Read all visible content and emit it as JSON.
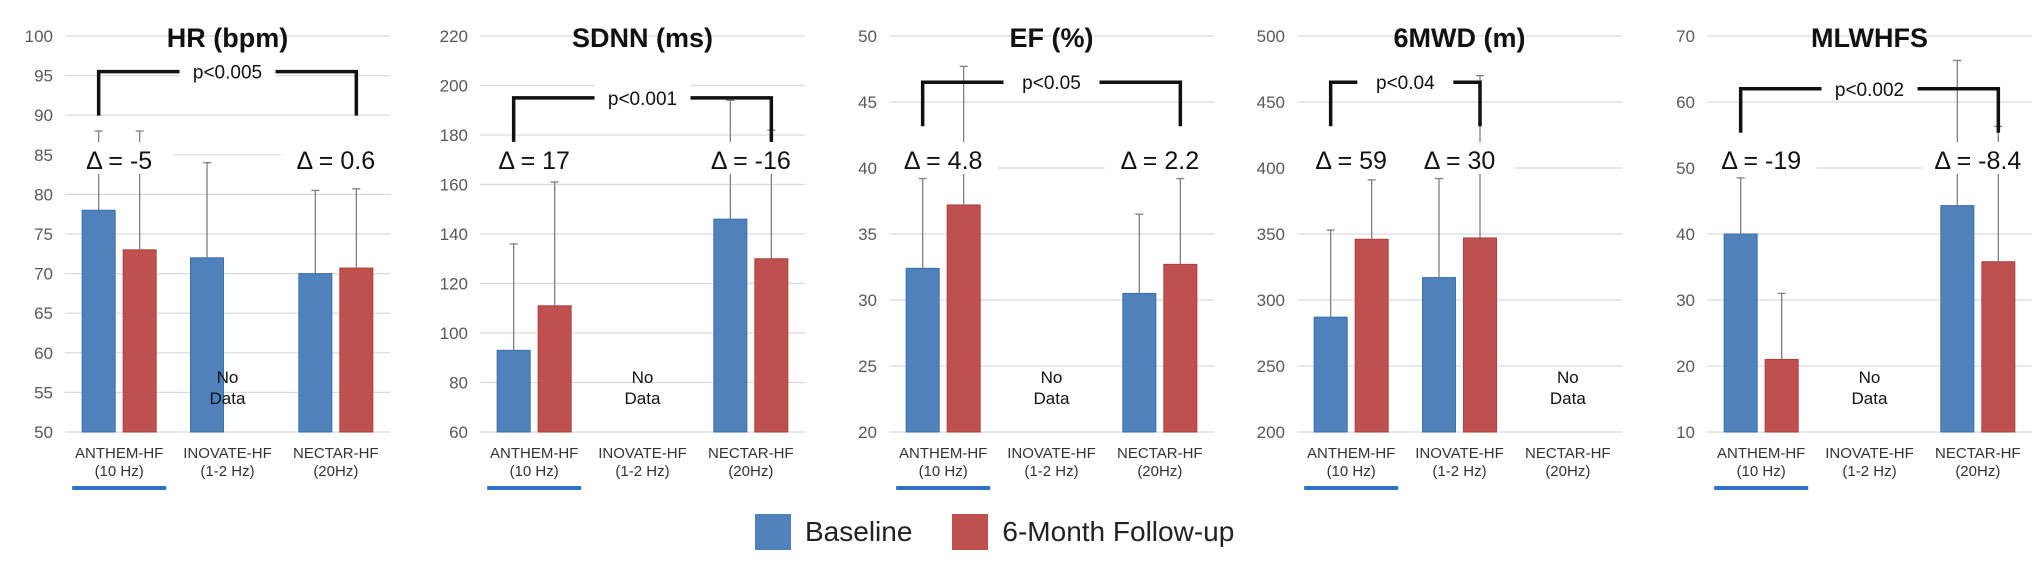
{
  "colors": {
    "baseline": "#4f81bd",
    "followup": "#c0504d",
    "grid": "#d9d9d9",
    "bracket": "#111111",
    "underline": "#2e75c9"
  },
  "legend": {
    "baseline": "Baseline",
    "followup": "6-Month Follow-up"
  },
  "chart_data": [
    {
      "type": "bar",
      "title": "HR (bpm)",
      "ylim": [
        50,
        100
      ],
      "yticks": [
        "50",
        "55",
        "60",
        "65",
        "70",
        "75",
        "80",
        "85",
        "90",
        "95",
        "100"
      ],
      "categories": [
        {
          "name": "ANTHEM-HF",
          "sub": "(10 Hz)",
          "underline": true
        },
        {
          "name": "INOVATE-HF",
          "sub": "(1-2 Hz)",
          "underline": false
        },
        {
          "name": "NECTAR-HF",
          "sub": "(20Hz)",
          "underline": false
        }
      ],
      "series": [
        {
          "name": "Baseline",
          "values": [
            78,
            72,
            70
          ],
          "errors": [
            10,
            12,
            10.5
          ]
        },
        {
          "name": "6-Month Follow-up",
          "values": [
            73,
            null,
            70.7
          ],
          "errors": [
            15,
            null,
            10
          ]
        }
      ],
      "deltas": [
        "Δ = -5",
        null,
        "Δ = 0.6"
      ],
      "no_data": [
        null,
        "No\nData",
        null
      ],
      "bracket": {
        "from": 0,
        "to": 2,
        "label": "p<0.005",
        "y": 95.5
      }
    },
    {
      "type": "bar",
      "title": "SDNN (ms)",
      "ylim": [
        60,
        220
      ],
      "yticks": [
        "60",
        "80",
        "100",
        "120",
        "140",
        "160",
        "180",
        "200",
        "220"
      ],
      "categories": [
        {
          "name": "ANTHEM-HF",
          "sub": "(10 Hz)",
          "underline": true
        },
        {
          "name": "INOVATE-HF",
          "sub": "(1-2 Hz)",
          "underline": false
        },
        {
          "name": "NECTAR-HF",
          "sub": "(20Hz)",
          "underline": false
        }
      ],
      "series": [
        {
          "name": "Baseline",
          "values": [
            93,
            null,
            146
          ],
          "errors": [
            43,
            null,
            48
          ]
        },
        {
          "name": "6-Month Follow-up",
          "values": [
            111,
            null,
            130
          ],
          "errors": [
            50,
            null,
            52
          ]
        }
      ],
      "deltas": [
        "Δ = 17",
        null,
        "Δ = -16"
      ],
      "no_data": [
        null,
        "No\nData",
        null
      ],
      "bracket": {
        "from": 0,
        "to": 2,
        "label": "p<0.001",
        "y": 195
      }
    },
    {
      "type": "bar",
      "title": "EF (%)",
      "ylim": [
        20,
        50
      ],
      "yticks": [
        "20",
        "25",
        "30",
        "35",
        "40",
        "45",
        "50"
      ],
      "categories": [
        {
          "name": "ANTHEM-HF",
          "sub": "(10 Hz)",
          "underline": true
        },
        {
          "name": "INOVATE-HF",
          "sub": "(1-2 Hz)",
          "underline": false
        },
        {
          "name": "NECTAR-HF",
          "sub": "(20Hz)",
          "underline": false
        }
      ],
      "series": [
        {
          "name": "Baseline",
          "values": [
            32.4,
            null,
            30.5
          ],
          "errors": [
            6.8,
            null,
            6
          ]
        },
        {
          "name": "6-Month Follow-up",
          "values": [
            37.2,
            null,
            32.7
          ],
          "errors": [
            10.5,
            null,
            6.5
          ]
        }
      ],
      "deltas": [
        "Δ = 4.8",
        null,
        "Δ = 2.2"
      ],
      "no_data": [
        null,
        "No\nData",
        null
      ],
      "bracket": {
        "from": 0,
        "to": 2,
        "label": "p<0.05",
        "y": 46.5
      }
    },
    {
      "type": "bar",
      "title": "6MWD (m)",
      "ylim": [
        200,
        500
      ],
      "yticks": [
        "200",
        "250",
        "300",
        "350",
        "400",
        "450",
        "500"
      ],
      "categories": [
        {
          "name": "ANTHEM-HF",
          "sub": "(10 Hz)",
          "underline": true
        },
        {
          "name": "INOVATE-HF",
          "sub": "(1-2 Hz)",
          "underline": false
        },
        {
          "name": "NECTAR-HF",
          "sub": "(20Hz)",
          "underline": false
        }
      ],
      "series": [
        {
          "name": "Baseline",
          "values": [
            287,
            317,
            null
          ],
          "errors": [
            66,
            75,
            null
          ]
        },
        {
          "name": "6-Month Follow-up",
          "values": [
            346,
            347,
            null
          ],
          "errors": [
            45,
            123,
            null
          ]
        }
      ],
      "deltas": [
        "Δ = 59",
        "Δ = 30",
        null
      ],
      "no_data": [
        null,
        null,
        "No\nData"
      ],
      "bracket": {
        "from": 0,
        "to": 1,
        "label": "p<0.04",
        "y": 465
      }
    },
    {
      "type": "bar",
      "title": "MLWHFS",
      "ylim": [
        10,
        70
      ],
      "yticks": [
        "10",
        "20",
        "30",
        "40",
        "50",
        "60",
        "70"
      ],
      "categories": [
        {
          "name": "ANTHEM-HF",
          "sub": "(10 Hz)",
          "underline": true
        },
        {
          "name": "INOVATE-HF",
          "sub": "(1-2 Hz)",
          "underline": false
        },
        {
          "name": "NECTAR-HF",
          "sub": "(20Hz)",
          "underline": false
        }
      ],
      "series": [
        {
          "name": "Baseline",
          "values": [
            40,
            null,
            44.3
          ],
          "errors": [
            8.5,
            null,
            22
          ]
        },
        {
          "name": "6-Month Follow-up",
          "values": [
            21,
            null,
            35.8
          ],
          "errors": [
            10,
            null,
            20.5
          ]
        }
      ],
      "deltas": [
        "Δ = -19",
        null,
        "Δ = -8.4"
      ],
      "no_data": [
        null,
        "No\nData",
        null
      ],
      "bracket": {
        "from": 0,
        "to": 2,
        "label": "p<0.002",
        "y": 62
      }
    }
  ]
}
